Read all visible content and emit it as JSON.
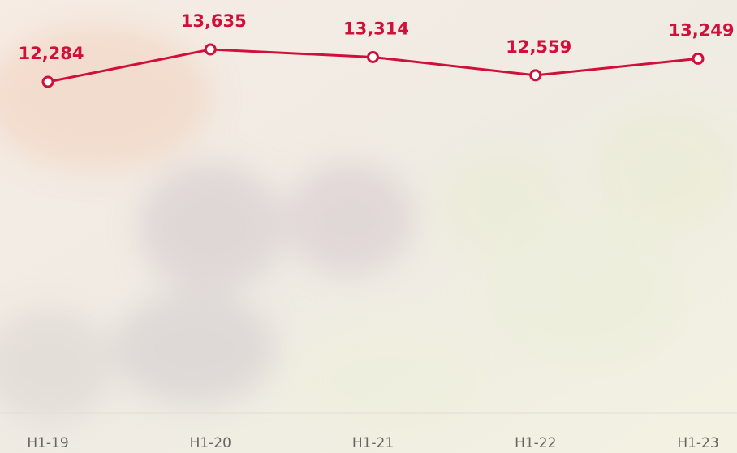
{
  "chart_data": {
    "type": "line",
    "categories": [
      "H1-19",
      "H1-20",
      "H1-21",
      "H1-22",
      "H1-23"
    ],
    "series": [
      {
        "color": "#d0103a",
        "values": [
          12284,
          13635,
          13314,
          12559,
          13249
        ],
        "value_labels": [
          "12,284",
          "13,635",
          "13,314",
          "12,559",
          "13,249"
        ]
      }
    ]
  }
}
